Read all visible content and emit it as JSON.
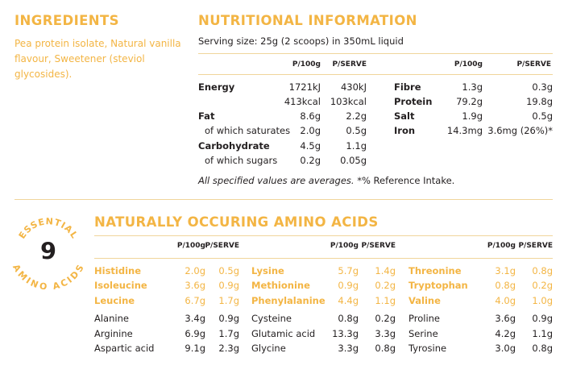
{
  "ingredients": {
    "title": "INGREDIENTS",
    "text": "Pea protein isolate, Natural vanilla flavour, Sweetener (steviol glycosides)."
  },
  "nutrition": {
    "title": "NUTRITIONAL INFORMATION",
    "serving": "Serving size: 25g (2 scoops) in 350mL liquid",
    "col_per100": "P/100g",
    "col_perserve": "P/SERVE",
    "left_rows": [
      {
        "label": "Energy",
        "bold": true,
        "p100": "1721kJ",
        "pserve": "430kJ"
      },
      {
        "label": "",
        "bold": false,
        "p100": "413kcal",
        "pserve": "103kcal"
      },
      {
        "label": "Fat",
        "bold": true,
        "p100": "8.6g",
        "pserve": "2.2g"
      },
      {
        "label": "of which saturates",
        "bold": false,
        "p100": "2.0g",
        "pserve": "0.5g"
      },
      {
        "label": "Carbohydrate",
        "bold": true,
        "p100": "4.5g",
        "pserve": "1.1g"
      },
      {
        "label": "of which sugars",
        "bold": false,
        "p100": "0.2g",
        "pserve": "0.05g"
      }
    ],
    "right_rows": [
      {
        "label": "Fibre",
        "p100": "1.3g",
        "pserve": "0.3g"
      },
      {
        "label": "Protein",
        "p100": "79.2g",
        "pserve": "19.8g"
      },
      {
        "label": "Salt",
        "p100": "1.9g",
        "pserve": "0.5g"
      },
      {
        "label": "Iron",
        "p100": "14.3mg",
        "pserve": "3.6mg (26%)*"
      }
    ],
    "note_italic": "All specified values are averages.",
    "note_rest": " *% Reference Intake."
  },
  "amino": {
    "title": "NATURALLY OCCURING AMINO ACIDS",
    "badge_number": "9",
    "badge_top": "ESSENTIAL",
    "badge_bottom": "AMINO ACIDS",
    "col_per100": "P/100g",
    "col_perserve": "P/SERVE",
    "columns": [
      {
        "essential": [
          {
            "name": "Histidine",
            "p100": "2.0g",
            "pserve": "0.5g"
          },
          {
            "name": "Isoleucine",
            "p100": "3.6g",
            "pserve": "0.9g"
          },
          {
            "name": "Leucine",
            "p100": "6.7g",
            "pserve": "1.7g"
          }
        ],
        "other": [
          {
            "name": "Alanine",
            "p100": "3.4g",
            "pserve": "0.9g"
          },
          {
            "name": "Arginine",
            "p100": "6.9g",
            "pserve": "1.7g"
          },
          {
            "name": "Aspartic acid",
            "p100": "9.1g",
            "pserve": "2.3g"
          }
        ]
      },
      {
        "essential": [
          {
            "name": "Lysine",
            "p100": "5.7g",
            "pserve": "1.4g"
          },
          {
            "name": "Methionine",
            "p100": "0.9g",
            "pserve": "0.2g"
          },
          {
            "name": "Phenylalanine",
            "p100": "4.4g",
            "pserve": "1.1g"
          }
        ],
        "other": [
          {
            "name": "Cysteine",
            "p100": "0.8g",
            "pserve": "0.2g"
          },
          {
            "name": "Glutamic acid",
            "p100": "13.3g",
            "pserve": "3.3g"
          },
          {
            "name": "Glycine",
            "p100": "3.3g",
            "pserve": "0.8g"
          }
        ]
      },
      {
        "essential": [
          {
            "name": "Threonine",
            "p100": "3.1g",
            "pserve": "0.8g"
          },
          {
            "name": "Tryptophan",
            "p100": "0.8g",
            "pserve": "0.2g"
          },
          {
            "name": "Valine",
            "p100": "4.0g",
            "pserve": "1.0g"
          }
        ],
        "other": [
          {
            "name": "Proline",
            "p100": "3.6g",
            "pserve": "0.9g"
          },
          {
            "name": "Serine",
            "p100": "4.2g",
            "pserve": "1.1g"
          },
          {
            "name": "Tyrosine",
            "p100": "3.0g",
            "pserve": "0.8g"
          }
        ]
      }
    ]
  },
  "colors": {
    "accent": "#f3b544",
    "text": "#231f20",
    "rule": "#f0d59b"
  }
}
